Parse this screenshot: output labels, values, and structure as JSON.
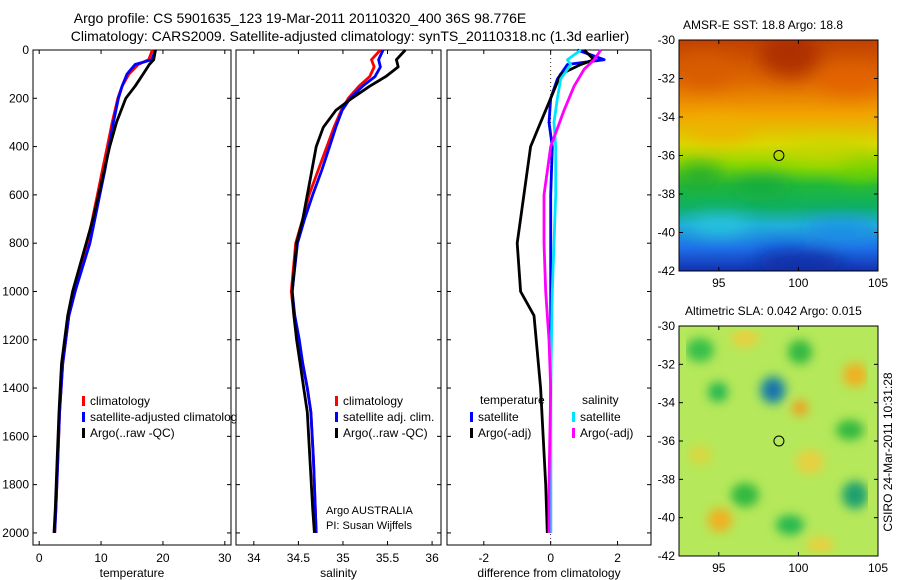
{
  "title": {
    "line1": "Argo profile: CS 5901635_123 19-Mar-2011 20110320_400 36S 98.776E",
    "line2": "Climatology: CARS2009. Satellite-adjusted climatology: synTS_20110318.nc (1.3d earlier)"
  },
  "credit": {
    "program": "Argo AUSTRALIA",
    "pi": "PI: Susan Wijffels",
    "stamp": "CSIRO 24-Mar-2011 10:31:28"
  },
  "colors": {
    "climatology": "#ff0000",
    "satellite": "#0000ff",
    "argo": "#000000",
    "salinity_satellite": "#00e5ff",
    "salinity_argo": "#ff00ff"
  },
  "chart_data": [
    {
      "type": "line",
      "xlabel": "temperature",
      "xlim": [
        -1,
        31
      ],
      "xticks": [
        0,
        10,
        20,
        30
      ],
      "ylim": [
        2050,
        0
      ],
      "yticks": [
        0,
        200,
        400,
        600,
        800,
        1000,
        1200,
        1400,
        1600,
        1800,
        2000
      ],
      "legend": [
        "climatology",
        "satellite-adjusted climatolog",
        "Argo(..raw -QC)"
      ],
      "series": [
        {
          "name": "climatology",
          "color": "#ff0000",
          "x": [
            18.3,
            17.7,
            16.0,
            14.5,
            13.4,
            12.7,
            11.8,
            11.0,
            10.2,
            9.4,
            8.6,
            7.8,
            6.8,
            5.8,
            4.8,
            4.3,
            3.8,
            3.3,
            3.0,
            2.7,
            2.5
          ],
          "y": [
            0,
            40,
            60,
            100,
            150,
            200,
            300,
            400,
            500,
            600,
            700,
            800,
            900,
            1000,
            1100,
            1200,
            1300,
            1500,
            1700,
            1900,
            2000
          ]
        },
        {
          "name": "satellite-adjusted climatology",
          "color": "#0000ff",
          "x": [
            18.8,
            18.2,
            15.5,
            14.2,
            13.4,
            12.8,
            12.0,
            11.3,
            10.6,
            9.8,
            9.0,
            8.2,
            7.0,
            5.8,
            4.8,
            4.3,
            3.8,
            3.3,
            3.0,
            2.7,
            2.5
          ],
          "y": [
            0,
            40,
            60,
            100,
            150,
            200,
            300,
            400,
            500,
            600,
            700,
            800,
            900,
            1000,
            1100,
            1200,
            1300,
            1500,
            1700,
            1900,
            2000
          ]
        },
        {
          "name": "Argo(..raw -QC)",
          "color": "#000000",
          "x": [
            18.8,
            18.5,
            17.8,
            16.8,
            15.5,
            14.0,
            12.5,
            11.4,
            10.5,
            9.6,
            8.7,
            7.6,
            6.5,
            5.4,
            4.6,
            4.1,
            3.6,
            3.2,
            2.9,
            2.6,
            2.4
          ],
          "y": [
            0,
            40,
            60,
            100,
            150,
            200,
            300,
            400,
            500,
            600,
            700,
            800,
            900,
            1000,
            1100,
            1200,
            1300,
            1500,
            1700,
            1900,
            2000
          ]
        }
      ]
    },
    {
      "type": "line",
      "xlabel": "salinity",
      "xlim": [
        33.8,
        36.1
      ],
      "xticks": [
        34,
        34.5,
        35,
        35.5,
        36
      ],
      "ylim": [
        2050,
        0
      ],
      "yticks": [
        0,
        200,
        400,
        600,
        800,
        1000,
        1200,
        1400,
        1600,
        1800,
        2000
      ],
      "legend": [
        "climatology",
        "satellite adj. clim.",
        "Argo(..raw -QC)"
      ],
      "series": [
        {
          "name": "climatology",
          "color": "#ff0000",
          "x": [
            35.42,
            35.32,
            35.35,
            35.3,
            35.18,
            35.06,
            34.98,
            34.9,
            34.82,
            34.72,
            34.62,
            34.55,
            34.47,
            34.42,
            34.45,
            34.5,
            34.55,
            34.6,
            34.64,
            34.67,
            34.69,
            34.7
          ],
          "y": [
            0,
            40,
            70,
            110,
            150,
            200,
            250,
            320,
            400,
            500,
            600,
            700,
            800,
            1000,
            1100,
            1200,
            1300,
            1400,
            1500,
            1700,
            1900,
            2000
          ]
        },
        {
          "name": "satellite adj. clim.",
          "color": "#0000ff",
          "x": [
            35.45,
            35.4,
            35.42,
            35.36,
            35.22,
            35.08,
            34.99,
            34.92,
            34.85,
            34.76,
            34.66,
            34.57,
            34.49,
            34.43,
            34.46,
            34.51,
            34.55,
            34.6,
            34.64,
            34.67,
            34.69,
            34.7
          ],
          "y": [
            0,
            40,
            70,
            110,
            150,
            200,
            250,
            320,
            400,
            500,
            600,
            700,
            800,
            1000,
            1100,
            1200,
            1300,
            1400,
            1500,
            1700,
            1900,
            2000
          ]
        },
        {
          "name": "Argo(..raw -QC)",
          "color": "#000000",
          "x": [
            35.7,
            35.6,
            35.62,
            35.48,
            35.3,
            35.1,
            34.92,
            34.78,
            34.7,
            34.65,
            34.6,
            34.55,
            34.48,
            34.43,
            34.45,
            34.48,
            34.52,
            34.56,
            34.6,
            34.63,
            34.66,
            34.68
          ],
          "y": [
            0,
            40,
            70,
            110,
            150,
            200,
            250,
            320,
            400,
            500,
            600,
            700,
            800,
            1000,
            1100,
            1200,
            1300,
            1400,
            1500,
            1700,
            1900,
            2000
          ]
        }
      ]
    },
    {
      "type": "line",
      "xlabel": "difference from climatology",
      "xlim": [
        -3.1,
        3.0
      ],
      "xticks": [
        -2,
        0,
        2
      ],
      "ylim": [
        2050,
        0
      ],
      "yticks": [
        0,
        200,
        400,
        600,
        800,
        1000,
        1200,
        1400,
        1600,
        1800,
        2000
      ],
      "legend_headers": [
        "temperature",
        "salinity"
      ],
      "legend": [
        "satellite",
        "Argo(-adj)",
        "satellite",
        "Argo(-adj)"
      ],
      "series": [
        {
          "name": "temperature satellite",
          "color": "#0000ff",
          "x": [
            0.8,
            1.6,
            0.5,
            0.2,
            0.0,
            -0.05,
            0.05,
            0.0,
            0.0,
            0.0,
            0.0,
            0.0,
            0.0
          ],
          "y": [
            0,
            40,
            60,
            120,
            200,
            300,
            400,
            600,
            800,
            1000,
            1400,
            1800,
            2000
          ]
        },
        {
          "name": "temperature Argo(-adj)",
          "color": "#000000",
          "x": [
            1.0,
            1.3,
            0.9,
            0.3,
            0.0,
            -0.3,
            -0.6,
            -0.8,
            -1.0,
            -0.9,
            -0.5,
            -0.3,
            -0.15,
            -0.1
          ],
          "y": [
            0,
            40,
            60,
            100,
            200,
            300,
            400,
            600,
            800,
            1000,
            1100,
            1400,
            1800,
            2000
          ]
        },
        {
          "name": "salinity satellite",
          "color": "#00e5ff",
          "x": [
            0.9,
            0.5,
            0.6,
            0.3,
            0.2,
            0.1,
            0.15,
            0.15,
            0.1,
            0.05,
            0.0,
            0.0,
            0.0
          ],
          "y": [
            0,
            40,
            60,
            120,
            200,
            300,
            400,
            600,
            800,
            1000,
            1400,
            1800,
            2000
          ]
        },
        {
          "name": "salinity Argo(-adj)",
          "color": "#ff00ff",
          "x": [
            1.5,
            1.3,
            1.0,
            0.7,
            0.4,
            0.0,
            -0.2,
            -0.2,
            -0.15,
            -0.05,
            0.0,
            -0.05,
            -0.05
          ],
          "y": [
            0,
            40,
            80,
            150,
            250,
            400,
            600,
            800,
            1000,
            1200,
            1400,
            1800,
            2000
          ]
        }
      ]
    },
    {
      "type": "heatmap",
      "title": "AMSR-E SST: 18.8  Argo: 18.8",
      "xlim": [
        92.5,
        105
      ],
      "ylim": [
        -42,
        -30
      ],
      "xticks": [
        95,
        100,
        105
      ],
      "yticks": [
        -30,
        -32,
        -34,
        -36,
        -38,
        -40,
        -42
      ],
      "marker": {
        "lon": 98.776,
        "lat": -36
      }
    },
    {
      "type": "heatmap",
      "title": "Altimetric SLA: 0.042  Argo: 0.015",
      "xlim": [
        92.5,
        105
      ],
      "ylim": [
        -42,
        -30
      ],
      "xticks": [
        95,
        100,
        105
      ],
      "yticks": [
        -30,
        -32,
        -34,
        -36,
        -38,
        -40,
        -42
      ],
      "marker": {
        "lon": 98.776,
        "lat": -36
      }
    }
  ]
}
